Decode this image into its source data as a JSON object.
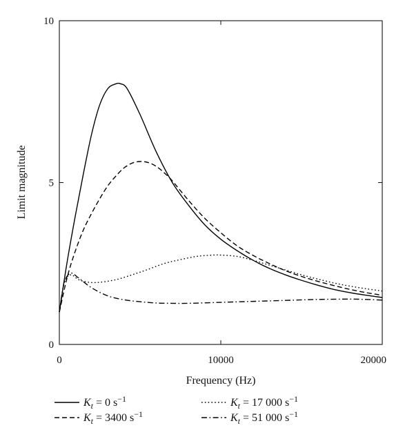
{
  "chart_data": {
    "type": "line",
    "xlabel": "Frequency (Hz)",
    "ylabel": "Limit magnitude",
    "xlim": [
      0,
      20000
    ],
    "ylim": [
      0,
      10
    ],
    "x_ticks": [
      0,
      10000,
      20000
    ],
    "y_ticks": [
      0,
      5,
      10
    ],
    "x_tick_labels": [
      "0",
      "10000",
      "20000"
    ],
    "y_tick_labels": [
      "0",
      "5",
      "10"
    ],
    "grid": false,
    "legend_placement": "bottom",
    "series": [
      {
        "name": "K_t = 0 s^-1",
        "label_var": "K",
        "label_sub": "t",
        "label_value": " = 0 s",
        "label_exp": "−1",
        "dash": "solid",
        "color": "#000000",
        "x": [
          0,
          500,
          1000,
          1500,
          2000,
          2500,
          3000,
          3500,
          3800,
          4200,
          5000,
          6000,
          7000,
          8000,
          9000,
          10000,
          11000,
          12000,
          13000,
          14000,
          15000,
          16000,
          17000,
          18000,
          19000,
          20000
        ],
        "y": [
          1.0,
          2.6,
          4.0,
          5.3,
          6.5,
          7.4,
          7.9,
          8.05,
          8.05,
          7.9,
          7.1,
          5.95,
          5.0,
          4.3,
          3.7,
          3.25,
          2.9,
          2.6,
          2.35,
          2.15,
          1.98,
          1.83,
          1.7,
          1.6,
          1.52,
          1.45
        ]
      },
      {
        "name": "K_t = 3400 s^-1",
        "label_var": "K",
        "label_sub": "t",
        "label_value": " = 3400 s",
        "label_exp": "−1",
        "dash": "dashed",
        "color": "#000000",
        "x": [
          0,
          500,
          1000,
          1500,
          2000,
          2500,
          3000,
          3500,
          4000,
          4500,
          5000,
          5500,
          6000,
          6500,
          7000,
          8000,
          9000,
          10000,
          11000,
          12000,
          13000,
          14000,
          15000,
          16000,
          17000,
          18000,
          19000,
          20000
        ],
        "y": [
          1.0,
          2.1,
          2.9,
          3.55,
          4.05,
          4.5,
          4.9,
          5.2,
          5.45,
          5.6,
          5.65,
          5.62,
          5.5,
          5.3,
          5.05,
          4.45,
          3.9,
          3.45,
          3.05,
          2.75,
          2.5,
          2.28,
          2.1,
          1.95,
          1.82,
          1.7,
          1.6,
          1.52
        ]
      },
      {
        "name": "K_t = 17 000 s^-1",
        "label_var": "K",
        "label_sub": "t",
        "label_value": " = 17 000 s",
        "label_exp": "−1",
        "dash": "dotted",
        "color": "#000000",
        "x": [
          0,
          300,
          700,
          1200,
          1800,
          2500,
          3500,
          4500,
          5500,
          6500,
          7500,
          8500,
          9500,
          10000,
          11000,
          12000,
          13000,
          14000,
          15000,
          16000,
          17000,
          18000,
          19000,
          20000
        ],
        "y": [
          1.0,
          1.9,
          2.15,
          2.0,
          1.92,
          1.92,
          2.0,
          2.15,
          2.32,
          2.5,
          2.62,
          2.72,
          2.76,
          2.76,
          2.72,
          2.6,
          2.45,
          2.3,
          2.15,
          2.02,
          1.9,
          1.8,
          1.72,
          1.65
        ]
      },
      {
        "name": "K_t = 51 000 s^-1",
        "label_var": "K",
        "label_sub": "t",
        "label_value": " = 51 000 s",
        "label_exp": "−1",
        "dash": "dashdot",
        "color": "#000000",
        "x": [
          0,
          300,
          700,
          1200,
          2000,
          3000,
          4000,
          5000,
          6000,
          7000,
          8000,
          10000,
          12000,
          14000,
          16000,
          18000,
          19000,
          20000
        ],
        "y": [
          1.0,
          1.9,
          2.2,
          2.05,
          1.75,
          1.5,
          1.38,
          1.32,
          1.28,
          1.27,
          1.27,
          1.3,
          1.33,
          1.36,
          1.39,
          1.4,
          1.39,
          1.37
        ]
      }
    ]
  }
}
